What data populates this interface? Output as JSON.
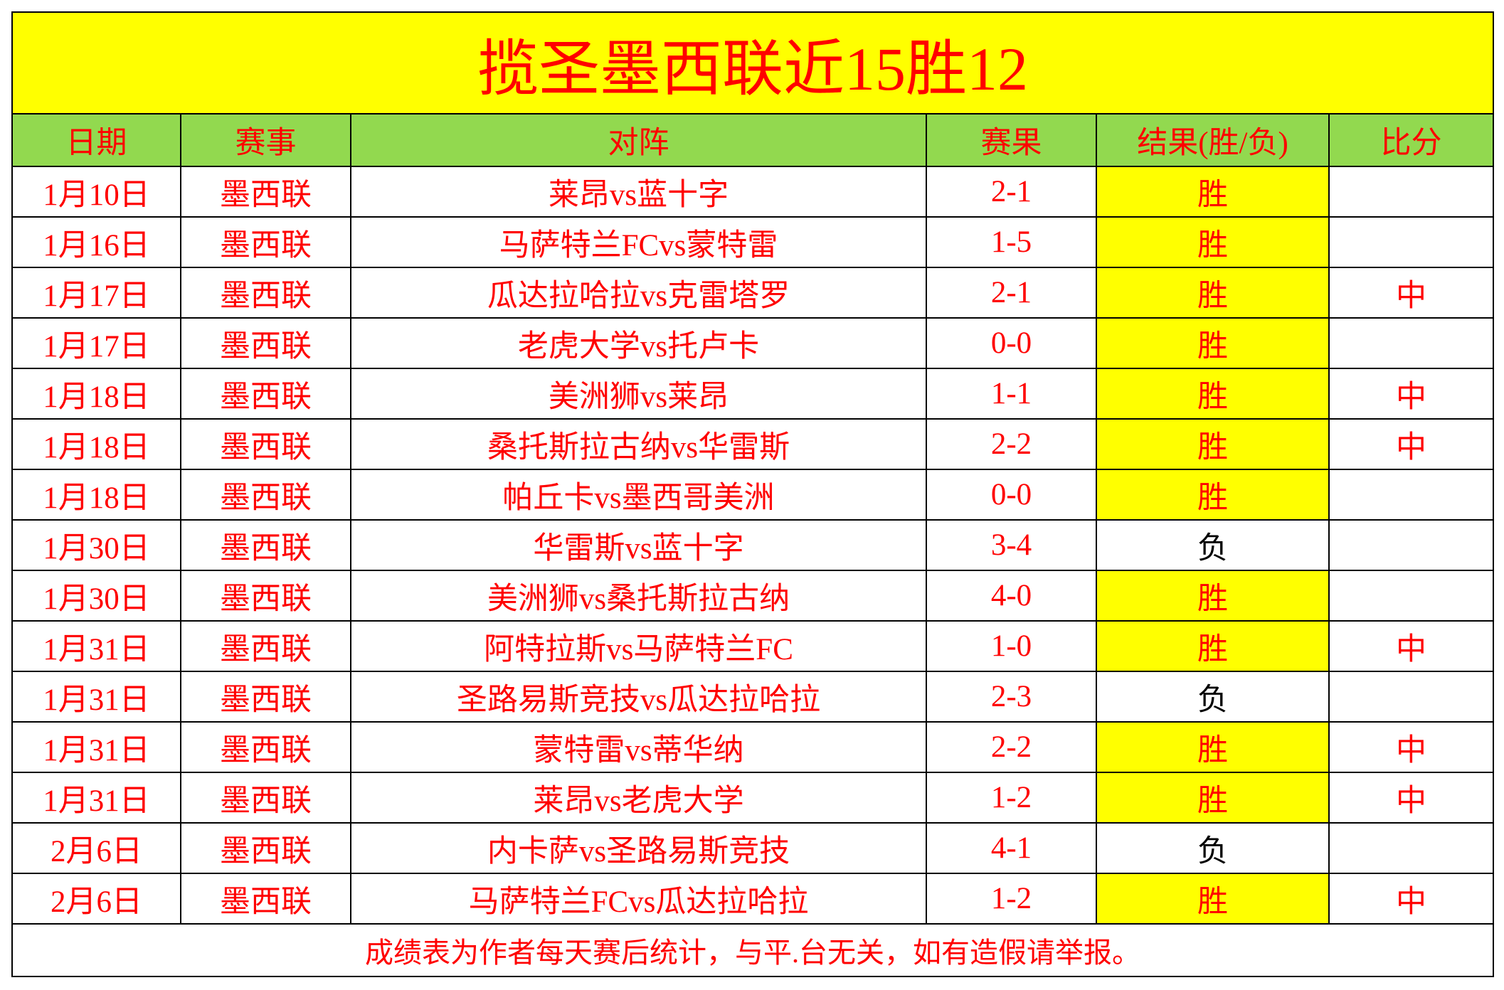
{
  "title": "揽圣墨西联近15胜12",
  "headers": [
    "日期",
    "赛事",
    "对阵",
    "赛果",
    "结果(胜/负)",
    "比分"
  ],
  "rows": [
    {
      "date": "1月10日",
      "league": "墨西联",
      "match": "莱昂vs蓝十字",
      "score": "2-1",
      "result": "胜",
      "bifen": ""
    },
    {
      "date": "1月16日",
      "league": "墨西联",
      "match": "马萨特兰FCvs蒙特雷",
      "score": "1-5",
      "result": "胜",
      "bifen": ""
    },
    {
      "date": "1月17日",
      "league": "墨西联",
      "match": "瓜达拉哈拉vs克雷塔罗",
      "score": "2-1",
      "result": "胜",
      "bifen": "中"
    },
    {
      "date": "1月17日",
      "league": "墨西联",
      "match": "老虎大学vs托卢卡",
      "score": "0-0",
      "result": "胜",
      "bifen": ""
    },
    {
      "date": "1月18日",
      "league": "墨西联",
      "match": "美洲狮vs莱昂",
      "score": "1-1",
      "result": "胜",
      "bifen": "中"
    },
    {
      "date": "1月18日",
      "league": "墨西联",
      "match": "桑托斯拉古纳vs华雷斯",
      "score": "2-2",
      "result": "胜",
      "bifen": "中"
    },
    {
      "date": "1月18日",
      "league": "墨西联",
      "match": "帕丘卡vs墨西哥美洲",
      "score": "0-0",
      "result": "胜",
      "bifen": ""
    },
    {
      "date": "1月30日",
      "league": "墨西联",
      "match": "华雷斯vs蓝十字",
      "score": "3-4",
      "result": "负",
      "bifen": ""
    },
    {
      "date": "1月30日",
      "league": "墨西联",
      "match": "美洲狮vs桑托斯拉古纳",
      "score": "4-0",
      "result": "胜",
      "bifen": ""
    },
    {
      "date": "1月31日",
      "league": "墨西联",
      "match": "阿特拉斯vs马萨特兰FC",
      "score": "1-0",
      "result": "胜",
      "bifen": "中"
    },
    {
      "date": "1月31日",
      "league": "墨西联",
      "match": "圣路易斯竞技vs瓜达拉哈拉",
      "score": "2-3",
      "result": "负",
      "bifen": ""
    },
    {
      "date": "1月31日",
      "league": "墨西联",
      "match": "蒙特雷vs蒂华纳",
      "score": "2-2",
      "result": "胜",
      "bifen": "中"
    },
    {
      "date": "1月31日",
      "league": "墨西联",
      "match": "莱昂vs老虎大学",
      "score": "1-2",
      "result": "胜",
      "bifen": "中"
    },
    {
      "date": "2月6日",
      "league": "墨西联",
      "match": "内卡萨vs圣路易斯竞技",
      "score": "4-1",
      "result": "负",
      "bifen": ""
    },
    {
      "date": "2月6日",
      "league": "墨西联",
      "match": "马萨特兰FCvs瓜达拉哈拉",
      "score": "1-2",
      "result": "胜",
      "bifen": "中"
    }
  ],
  "footer": "成绩表为作者每天赛后统计，与平.台无关，如有造假请举报。",
  "colors": {
    "title_bg": "#ffff00",
    "header_bg": "#92d94f",
    "win_bg": "#ffff00",
    "text": "#ff0000",
    "lose_text": "#000000"
  }
}
